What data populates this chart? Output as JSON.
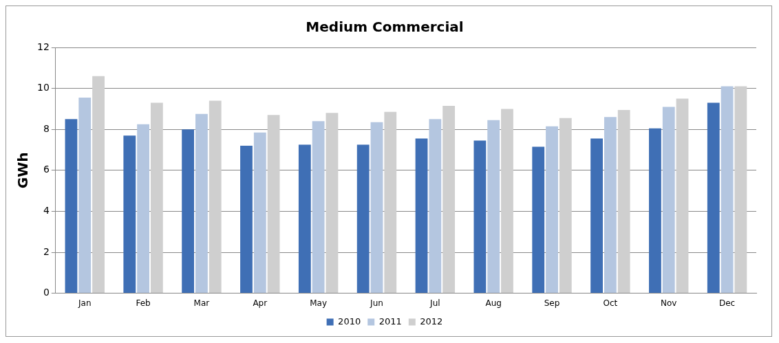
{
  "chart_data": {
    "type": "bar",
    "title": "Medium Commercial",
    "ylabel": "GWh",
    "categories": [
      "Jan",
      "Feb",
      "Mar",
      "Apr",
      "May",
      "Jun",
      "Jul",
      "Aug",
      "Sep",
      "Oct",
      "Nov",
      "Dec"
    ],
    "series": [
      {
        "name": "2010",
        "color": "#3f6fb5",
        "values": [
          8.5,
          7.7,
          8.0,
          7.2,
          7.25,
          7.25,
          7.55,
          7.45,
          7.15,
          7.55,
          8.05,
          9.3
        ]
      },
      {
        "name": "2011",
        "color": "#b4c6e0",
        "values": [
          9.55,
          8.25,
          8.75,
          7.85,
          8.4,
          8.35,
          8.5,
          8.45,
          8.15,
          8.6,
          9.1,
          10.1
        ]
      },
      {
        "name": "2012",
        "color": "#cfcfcf",
        "values": [
          10.6,
          9.3,
          9.4,
          8.7,
          8.8,
          8.85,
          9.15,
          9.0,
          8.55,
          8.95,
          9.5,
          10.1
        ]
      }
    ],
    "ylim": [
      0,
      12
    ],
    "yticks": [
      0,
      2,
      4,
      6,
      8,
      10,
      12
    ],
    "grid": "y",
    "legend": "bottom"
  }
}
